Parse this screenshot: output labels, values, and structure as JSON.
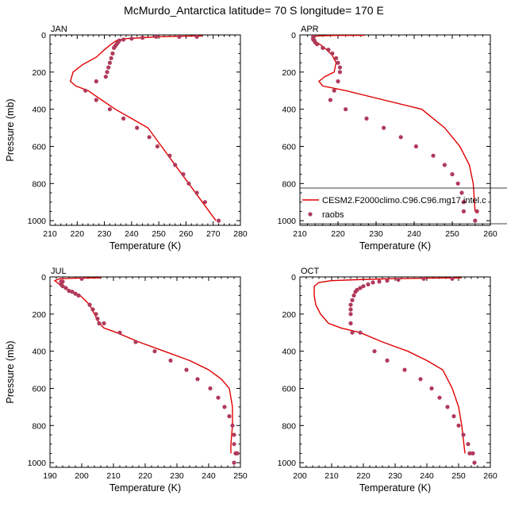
{
  "title": "McMurdo_Antarctica  latitude= 70 S longitude= 170 E",
  "colors": {
    "model": "#e00000",
    "obs": "#b03a5b"
  },
  "legend": {
    "panel": 1,
    "model_label": "CESM2.F2000climo.C96.C96.mg17.intel.c",
    "obs_label": "raobs"
  },
  "chart_data": [
    {
      "type": "line",
      "label": "JAN",
      "xlabel": "Temperature (K)",
      "ylabel": "Pressure (mb)",
      "xlim": [
        210,
        280
      ],
      "ylim": [
        1025,
        0
      ],
      "xticks": [
        210,
        220,
        230,
        240,
        250,
        260,
        270,
        280
      ],
      "yticks": [
        0,
        200,
        400,
        600,
        800,
        1000
      ],
      "series": [
        {
          "kind": "model",
          "x": [
            266,
            260,
            250,
            244,
            238,
            234.5,
            232.5,
            230,
            227,
            222,
            218.5,
            217.5,
            219.5,
            224,
            229,
            234,
            240,
            246,
            251,
            256,
            261,
            266,
            271
          ],
          "y": [
            5,
            7,
            10,
            15,
            20,
            30,
            50,
            80,
            120,
            160,
            200,
            250,
            275,
            300,
            350,
            400,
            450,
            500,
            600,
            700,
            800,
            900,
            1000
          ]
        },
        {
          "kind": "obs",
          "x": [
            264,
            257.5,
            249,
            244,
            240,
            237,
            235.5,
            235,
            234.5,
            234,
            233.5,
            233,
            232.5,
            232,
            231.5,
            231,
            230.5,
            227,
            223,
            227,
            232,
            237,
            242,
            246.5,
            249.5,
            254,
            256,
            259,
            261,
            264,
            267,
            272
          ],
          "y": [
            10,
            10,
            10,
            15,
            20,
            25,
            30,
            40,
            50,
            60,
            70,
            100,
            125,
            150,
            175,
            200,
            225,
            250,
            300,
            350,
            400,
            450,
            500,
            550,
            600,
            650,
            700,
            750,
            800,
            850,
            900,
            1000
          ]
        }
      ]
    },
    {
      "type": "line",
      "label": "APR",
      "xlabel": "Temperature (K)",
      "ylabel": "",
      "xlim": [
        210,
        260
      ],
      "ylim": [
        1025,
        0
      ],
      "xticks": [
        210,
        220,
        230,
        240,
        250,
        260
      ],
      "yticks": [
        0,
        200,
        400,
        600,
        800,
        1000
      ],
      "series": [
        {
          "kind": "model",
          "x": [
            227,
            219,
            215,
            213.5,
            213.5,
            214.5,
            216.5,
            218.5,
            219.5,
            219,
            216.5,
            215,
            216,
            222,
            232,
            242,
            248,
            252,
            254.5,
            255.5,
            256
          ],
          "y": [
            2,
            3,
            5,
            10,
            20,
            40,
            70,
            110,
            150,
            200,
            225,
            250,
            275,
            300,
            350,
            400,
            500,
            600,
            700,
            800,
            950
          ]
        },
        {
          "kind": "obs",
          "x": [
            213.5,
            213.5,
            213.5,
            213.5,
            213.8,
            214,
            214.5,
            216,
            217.5,
            218.5,
            219.5,
            220,
            220.5,
            220.5,
            220,
            219,
            218,
            222,
            227.5,
            232,
            236.5,
            240.5,
            245,
            248,
            250,
            251.5,
            252.5,
            253,
            253,
            256,
            256.5
          ],
          "y": [
            10,
            15,
            20,
            25,
            30,
            40,
            50,
            70,
            80,
            100,
            125,
            150,
            175,
            200,
            250,
            300,
            350,
            400,
            450,
            500,
            550,
            600,
            650,
            700,
            750,
            800,
            850,
            900,
            950,
            1000,
            950
          ]
        }
      ]
    },
    {
      "type": "line",
      "label": "JUL",
      "xlabel": "Temperature (K)",
      "ylabel": "Pressure (mb)",
      "xlim": [
        190,
        250
      ],
      "ylim": [
        1025,
        0
      ],
      "xticks": [
        190,
        200,
        210,
        220,
        230,
        240,
        250
      ],
      "yticks": [
        0,
        200,
        400,
        600,
        800,
        1000
      ],
      "series": [
        {
          "kind": "model",
          "x": [
            206,
            198,
            193,
            191.5,
            193,
            196,
            199.5,
            202.5,
            204,
            205.5,
            207,
            211,
            218,
            226,
            234,
            240,
            244,
            246.5,
            247.5,
            247.5,
            247,
            247
          ],
          "y": [
            5,
            7,
            10,
            20,
            40,
            70,
            100,
            150,
            200,
            250,
            275,
            300,
            350,
            400,
            450,
            500,
            550,
            600,
            700,
            800,
            900,
            950
          ]
        },
        {
          "kind": "obs",
          "x": [
            200,
            194,
            193.5,
            193.5,
            194,
            195,
            196,
            197,
            198,
            199,
            202.5,
            203.5,
            204.5,
            205,
            205.5,
            207,
            212,
            217,
            223,
            228,
            233,
            236.5,
            240.5,
            243,
            245,
            246.5,
            247.5,
            248,
            248,
            248.5,
            249,
            248.5,
            248
          ],
          "y": [
            10,
            25,
            25,
            40,
            50,
            60,
            75,
            80,
            90,
            100,
            150,
            175,
            200,
            225,
            250,
            250,
            300,
            350,
            400,
            450,
            500,
            550,
            600,
            650,
            700,
            750,
            800,
            850,
            900,
            950,
            950,
            950,
            1000
          ]
        }
      ]
    },
    {
      "type": "line",
      "label": "OCT",
      "xlabel": "Temperature (K)",
      "ylabel": "",
      "xlim": [
        200,
        260
      ],
      "ylim": [
        1025,
        0
      ],
      "xticks": [
        200,
        210,
        220,
        230,
        240,
        250,
        260
      ],
      "yticks": [
        0,
        200,
        400,
        600,
        800,
        1000
      ],
      "series": [
        {
          "kind": "model",
          "x": [
            251,
            240,
            228,
            218,
            210,
            206,
            204.5,
            204.5,
            205,
            206.5,
            209,
            213,
            219,
            226,
            234,
            240,
            245,
            248,
            250,
            251,
            252
          ],
          "y": [
            5,
            7,
            10,
            15,
            20,
            30,
            50,
            100,
            150,
            200,
            250,
            275,
            300,
            350,
            400,
            450,
            500,
            600,
            700,
            800,
            950
          ]
        },
        {
          "kind": "obs",
          "x": [
            248,
            239,
            231,
            227.5,
            225,
            223,
            221.5,
            220,
            219,
            218,
            217.5,
            217,
            216.5,
            216,
            216,
            216,
            216,
            216.5,
            219,
            223.5,
            227.5,
            233,
            238,
            241.5,
            244,
            246.5,
            248.5,
            250,
            251.5,
            253,
            253.5,
            254.5,
            255
          ],
          "y": [
            10,
            10,
            15,
            20,
            25,
            30,
            40,
            50,
            60,
            70,
            80,
            100,
            125,
            150,
            175,
            200,
            250,
            300,
            300,
            400,
            450,
            500,
            550,
            600,
            650,
            700,
            750,
            800,
            850,
            900,
            950,
            950,
            1000
          ]
        }
      ]
    }
  ]
}
